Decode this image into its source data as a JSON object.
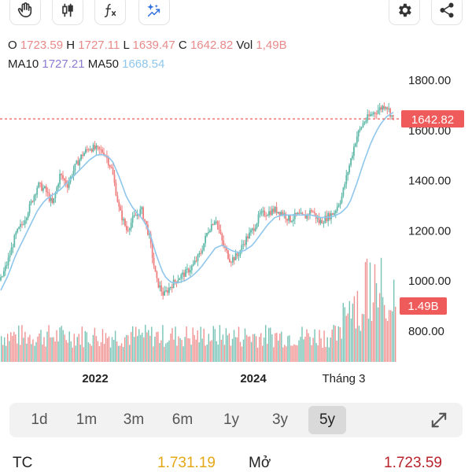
{
  "toolbar": {
    "left_icons": [
      "hand-icon",
      "candlestick-icon",
      "function-icon",
      "sparkle-chart-icon"
    ],
    "right_icons": [
      "gear-icon",
      "share-icon"
    ]
  },
  "ohlc": {
    "o_label": "O",
    "o": "1723.59",
    "h_label": "H",
    "h": "1727.11",
    "l_label": "L",
    "l": "1639.47",
    "c_label": "C",
    "c": "1642.82",
    "vol_label": "Vol",
    "vol": "1,49B"
  },
  "ma": {
    "ma10_label": "MA10",
    "ma10": "1727.21",
    "ma50_label": "MA50",
    "ma50": "1668.54"
  },
  "colors": {
    "up": "#5fb8a8",
    "down": "#ef7f7f",
    "ma10": "#8c7ad1",
    "ma50": "#8fc6ec",
    "price_tag": "#ef5a5a",
    "volume_tag": "#ef5a5a"
  },
  "chart_data": {
    "type": "candlestick",
    "y_axis_ticks": [
      1800,
      1600,
      1400,
      1200,
      1000,
      800
    ],
    "y_tick_labels": [
      "1800.00",
      "1600.00",
      "1400.00",
      "1200.00",
      "1000.00",
      "800.00"
    ],
    "x_tick_labels": [
      "2022",
      "2024",
      "Tháng 3"
    ],
    "price_line": 1642.82,
    "price_tag_label": "1642.82",
    "volume_tag_label": "1.49B",
    "close_series": [
      1000,
      1080,
      1180,
      1230,
      1300,
      1380,
      1360,
      1300,
      1420,
      1380,
      1450,
      1500,
      1530,
      1520,
      1510,
      1440,
      1280,
      1200,
      1250,
      1280,
      1180,
      1000,
      940,
      980,
      1010,
      1030,
      1060,
      1110,
      1200,
      1250,
      1140,
      1080,
      1100,
      1160,
      1200,
      1260,
      1270,
      1280,
      1270,
      1240,
      1260,
      1250,
      1280,
      1230,
      1250,
      1270,
      1330,
      1450,
      1570,
      1630,
      1660,
      1680,
      1700,
      1643
    ],
    "ma50_series": [
      960,
      1020,
      1100,
      1160,
      1220,
      1280,
      1320,
      1340,
      1360,
      1390,
      1420,
      1450,
      1480,
      1500,
      1500,
      1480,
      1410,
      1330,
      1280,
      1250,
      1200,
      1100,
      1020,
      990,
      990,
      1000,
      1020,
      1050,
      1090,
      1130,
      1140,
      1120,
      1110,
      1120,
      1140,
      1180,
      1220,
      1250,
      1260,
      1260,
      1260,
      1260,
      1260,
      1250,
      1250,
      1255,
      1270,
      1300,
      1380,
      1470,
      1550,
      1610,
      1650,
      1669
    ]
  },
  "timeframes": {
    "items": [
      "1d",
      "1m",
      "3m",
      "6m",
      "1y",
      "3y",
      "5y"
    ],
    "active": "5y"
  },
  "bottom": {
    "tc_label": "TC",
    "tc_value": "1.731.19",
    "open_label": "Mở",
    "open_value": "1.723.59"
  }
}
